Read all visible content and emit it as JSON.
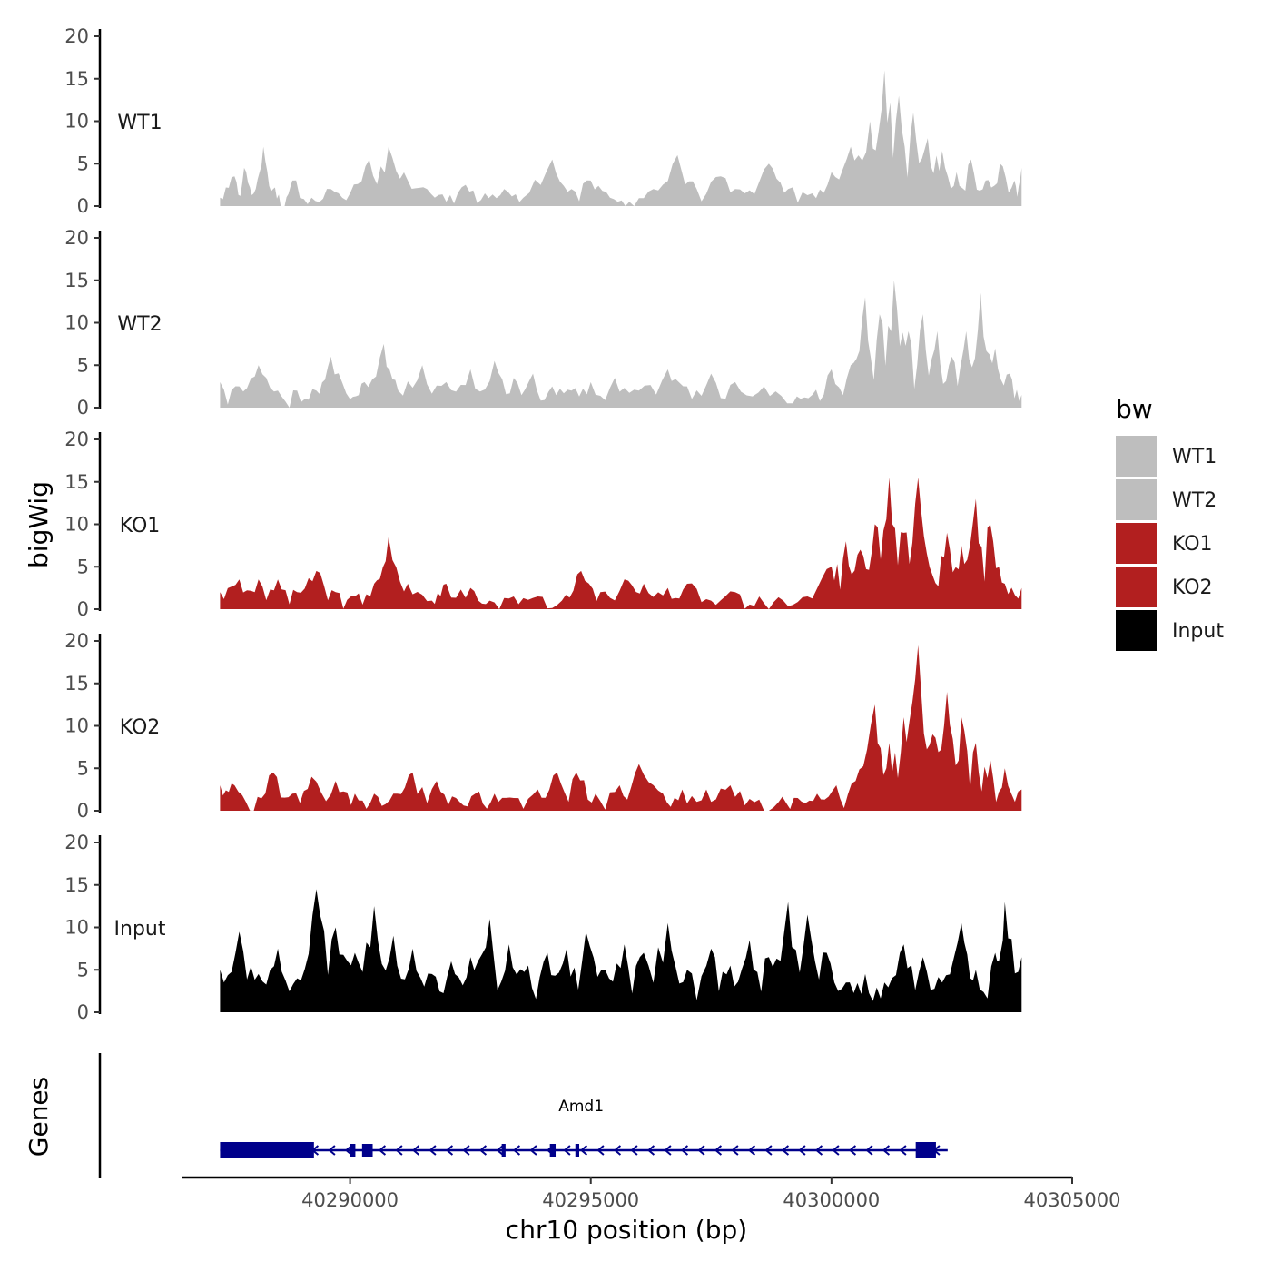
{
  "chart_data": {
    "type": "area",
    "title": "",
    "ylabel": "bigWig",
    "xlabel": "chr10 position (bp)",
    "gene_panel_label": "Genes",
    "ylim": [
      0,
      20
    ],
    "yticks": [
      0,
      5,
      10,
      15,
      20
    ],
    "xlim": [
      40286500,
      40305000
    ],
    "xticks": [
      40290000,
      40295000,
      40300000,
      40305000
    ],
    "xtick_labels": [
      "40290000",
      "40295000",
      "40300000",
      "40305000"
    ],
    "signal_range": [
      40287300,
      40303950
    ],
    "legend": {
      "title": "bw",
      "position": "right",
      "entries": [
        {
          "label": "WT1",
          "color": "#bebebe"
        },
        {
          "label": "WT2",
          "color": "#bebebe"
        },
        {
          "label": "KO1",
          "color": "#b21f1f"
        },
        {
          "label": "KO2",
          "color": "#b21f1f"
        },
        {
          "label": "Input",
          "color": "#000000"
        }
      ]
    },
    "series": [
      {
        "name": "WT1",
        "color": "#bebebe",
        "peaks": [
          [
            40287300,
            1
          ],
          [
            40287600,
            3.5
          ],
          [
            40287800,
            4.5
          ],
          [
            40288000,
            1.5
          ],
          [
            40288200,
            7
          ],
          [
            40288400,
            2
          ],
          [
            40288600,
            0
          ],
          [
            40288800,
            3
          ],
          [
            40289200,
            1
          ],
          [
            40289600,
            2
          ],
          [
            40290000,
            1.5
          ],
          [
            40290400,
            5.5
          ],
          [
            40290800,
            7
          ],
          [
            40291200,
            3
          ],
          [
            40291600,
            2
          ],
          [
            40292000,
            0.5
          ],
          [
            40292400,
            2.5
          ],
          [
            40292800,
            1.5
          ],
          [
            40293200,
            2
          ],
          [
            40293600,
            1
          ],
          [
            40294200,
            5.5
          ],
          [
            40294600,
            2
          ],
          [
            40295000,
            3
          ],
          [
            40295400,
            1
          ],
          [
            40295800,
            0.5
          ],
          [
            40296300,
            2
          ],
          [
            40296800,
            6
          ],
          [
            40297200,
            2
          ],
          [
            40297700,
            3.5
          ],
          [
            40298200,
            1.5
          ],
          [
            40298700,
            5
          ],
          [
            40299100,
            2
          ],
          [
            40299600,
            1.5
          ],
          [
            40300000,
            4
          ],
          [
            40300400,
            7
          ],
          [
            40300800,
            10
          ],
          [
            40301100,
            16
          ],
          [
            40301400,
            13
          ],
          [
            40301700,
            11
          ],
          [
            40302000,
            8
          ],
          [
            40302300,
            6.5
          ],
          [
            40302600,
            4
          ],
          [
            40302900,
            5.5
          ],
          [
            40303200,
            3
          ],
          [
            40303500,
            5
          ],
          [
            40303800,
            3
          ],
          [
            40303950,
            4.5
          ]
        ]
      },
      {
        "name": "WT2",
        "color": "#bebebe",
        "peaks": [
          [
            40287300,
            3
          ],
          [
            40287700,
            2.5
          ],
          [
            40288100,
            5
          ],
          [
            40288500,
            2
          ],
          [
            40288900,
            2
          ],
          [
            40289300,
            2
          ],
          [
            40289600,
            6
          ],
          [
            40290000,
            1
          ],
          [
            40290300,
            3
          ],
          [
            40290700,
            7.5
          ],
          [
            40291000,
            2
          ],
          [
            40291500,
            5
          ],
          [
            40292000,
            3
          ],
          [
            40292500,
            4.5
          ],
          [
            40293000,
            5.5
          ],
          [
            40293400,
            3.5
          ],
          [
            40293800,
            4
          ],
          [
            40294200,
            2.5
          ],
          [
            40294600,
            2
          ],
          [
            40295000,
            3
          ],
          [
            40295500,
            3.5
          ],
          [
            40296000,
            2
          ],
          [
            40296600,
            4.5
          ],
          [
            40297000,
            2.5
          ],
          [
            40297500,
            4
          ],
          [
            40298000,
            3
          ],
          [
            40298600,
            2.5
          ],
          [
            40299200,
            0.5
          ],
          [
            40299600,
            1.5
          ],
          [
            40300000,
            4.5
          ],
          [
            40300400,
            5
          ],
          [
            40300700,
            13
          ],
          [
            40301000,
            11
          ],
          [
            40301300,
            15
          ],
          [
            40301600,
            9
          ],
          [
            40301900,
            11
          ],
          [
            40302200,
            9
          ],
          [
            40302500,
            6
          ],
          [
            40302800,
            9
          ],
          [
            40303100,
            13.5
          ],
          [
            40303400,
            7
          ],
          [
            40303700,
            4
          ],
          [
            40303950,
            1.5
          ]
        ]
      },
      {
        "name": "KO1",
        "color": "#b21f1f",
        "peaks": [
          [
            40287300,
            2
          ],
          [
            40287700,
            3.5
          ],
          [
            40288100,
            3.5
          ],
          [
            40288500,
            3.5
          ],
          [
            40288900,
            2
          ],
          [
            40289300,
            4.5
          ],
          [
            40289700,
            2
          ],
          [
            40290100,
            1.5
          ],
          [
            40290500,
            3
          ],
          [
            40290800,
            8.5
          ],
          [
            40291200,
            3
          ],
          [
            40291700,
            1
          ],
          [
            40292000,
            3
          ],
          [
            40292500,
            2.5
          ],
          [
            40292900,
            1
          ],
          [
            40293400,
            1.5
          ],
          [
            40293900,
            1.5
          ],
          [
            40294400,
            1
          ],
          [
            40294800,
            4.5
          ],
          [
            40295200,
            2
          ],
          [
            40295700,
            3.5
          ],
          [
            40296100,
            3
          ],
          [
            40296600,
            2.5
          ],
          [
            40297000,
            3
          ],
          [
            40297500,
            1
          ],
          [
            40298000,
            2
          ],
          [
            40298500,
            1.5
          ],
          [
            40299000,
            1
          ],
          [
            40299500,
            1.5
          ],
          [
            40300000,
            5
          ],
          [
            40300300,
            8
          ],
          [
            40300600,
            7
          ],
          [
            40300900,
            10
          ],
          [
            40301200,
            15.5
          ],
          [
            40301500,
            9
          ],
          [
            40301800,
            15.5
          ],
          [
            40302100,
            4
          ],
          [
            40302400,
            9
          ],
          [
            40302700,
            7.5
          ],
          [
            40303000,
            13
          ],
          [
            40303300,
            10
          ],
          [
            40303600,
            3
          ],
          [
            40303950,
            2.5
          ]
        ]
      },
      {
        "name": "KO2",
        "color": "#b21f1f",
        "peaks": [
          [
            40287300,
            3
          ],
          [
            40287600,
            3
          ],
          [
            40288000,
            0
          ],
          [
            40288400,
            4.5
          ],
          [
            40288800,
            2
          ],
          [
            40289200,
            4
          ],
          [
            40289700,
            3.5
          ],
          [
            40290100,
            2
          ],
          [
            40290500,
            2
          ],
          [
            40290900,
            2
          ],
          [
            40291300,
            4.5
          ],
          [
            40291800,
            3.5
          ],
          [
            40292200,
            1.5
          ],
          [
            40292600,
            2
          ],
          [
            40293000,
            2
          ],
          [
            40293400,
            1.5
          ],
          [
            40293900,
            2.5
          ],
          [
            40294300,
            4.5
          ],
          [
            40294700,
            4.5
          ],
          [
            40295100,
            2
          ],
          [
            40295600,
            3
          ],
          [
            40296000,
            5.5
          ],
          [
            40296500,
            2
          ],
          [
            40296900,
            2.5
          ],
          [
            40297400,
            2.5
          ],
          [
            40297900,
            3
          ],
          [
            40298400,
            1
          ],
          [
            40298900,
            1
          ],
          [
            40299300,
            1.5
          ],
          [
            40299700,
            2
          ],
          [
            40300100,
            3
          ],
          [
            40300500,
            3.5
          ],
          [
            40300900,
            12.5
          ],
          [
            40301200,
            8
          ],
          [
            40301500,
            11
          ],
          [
            40301800,
            19.5
          ],
          [
            40302100,
            9
          ],
          [
            40302400,
            14
          ],
          [
            40302700,
            11
          ],
          [
            40303000,
            8
          ],
          [
            40303300,
            6
          ],
          [
            40303600,
            5
          ],
          [
            40303950,
            2.5
          ]
        ]
      },
      {
        "name": "Input",
        "color": "#000000",
        "peaks": [
          [
            40287300,
            5
          ],
          [
            40287700,
            9.5
          ],
          [
            40288100,
            4.5
          ],
          [
            40288500,
            7.5
          ],
          [
            40288900,
            4
          ],
          [
            40289300,
            14.5
          ],
          [
            40289700,
            10
          ],
          [
            40290100,
            7
          ],
          [
            40290500,
            12.5
          ],
          [
            40290900,
            9
          ],
          [
            40291300,
            7.5
          ],
          [
            40291700,
            4.5
          ],
          [
            40292100,
            6
          ],
          [
            40292500,
            6.5
          ],
          [
            40292900,
            11
          ],
          [
            40293300,
            8
          ],
          [
            40293700,
            5.5
          ],
          [
            40294100,
            7
          ],
          [
            40294500,
            7.5
          ],
          [
            40294900,
            9.5
          ],
          [
            40295300,
            5
          ],
          [
            40295700,
            8
          ],
          [
            40296100,
            7
          ],
          [
            40296600,
            10.5
          ],
          [
            40297000,
            5
          ],
          [
            40297500,
            7.5
          ],
          [
            40297900,
            5.5
          ],
          [
            40298300,
            8.5
          ],
          [
            40298700,
            6.5
          ],
          [
            40299100,
            13
          ],
          [
            40299500,
            11.5
          ],
          [
            40299900,
            7
          ],
          [
            40300300,
            3.5
          ],
          [
            40300700,
            4.5
          ],
          [
            40301100,
            3.5
          ],
          [
            40301500,
            8
          ],
          [
            40301900,
            6.5
          ],
          [
            40302300,
            3.5
          ],
          [
            40302700,
            10.5
          ],
          [
            40303000,
            5
          ],
          [
            40303400,
            7
          ],
          [
            40303600,
            13
          ],
          [
            40303950,
            6.5
          ]
        ]
      }
    ],
    "gene": {
      "name": "Amd1",
      "strand": "-",
      "color": "#00008b",
      "start": 40287300,
      "end": 40302300,
      "exons": [
        [
          40287300,
          40289250
        ],
        [
          40289990,
          40290110
        ],
        [
          40290250,
          40290470
        ],
        [
          40293150,
          40293230
        ],
        [
          40294150,
          40294270
        ],
        [
          40294680,
          40294760
        ],
        [
          40301750,
          40302170
        ]
      ]
    }
  }
}
